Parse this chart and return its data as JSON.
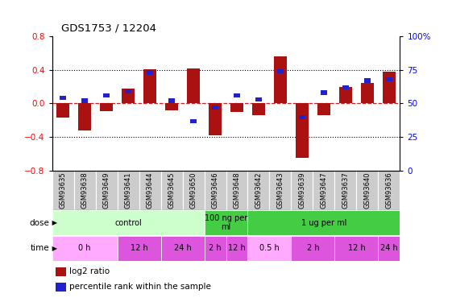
{
  "title": "GDS1753 / 12204",
  "samples": [
    "GSM93635",
    "GSM93638",
    "GSM93649",
    "GSM93641",
    "GSM93644",
    "GSM93645",
    "GSM93650",
    "GSM93646",
    "GSM93648",
    "GSM93642",
    "GSM93643",
    "GSM93639",
    "GSM93647",
    "GSM93637",
    "GSM93640",
    "GSM93636"
  ],
  "log2_ratio": [
    -0.17,
    -0.32,
    -0.09,
    0.18,
    0.41,
    -0.08,
    0.42,
    -0.38,
    -0.1,
    -0.14,
    0.56,
    -0.65,
    -0.14,
    0.2,
    0.24,
    0.38
  ],
  "percentile": [
    54,
    52,
    56,
    59,
    73,
    52,
    37,
    47,
    56,
    53,
    74,
    40,
    58,
    62,
    67,
    68
  ],
  "ylim": [
    -0.8,
    0.8
  ],
  "yticks_left": [
    -0.8,
    -0.4,
    0.0,
    0.4,
    0.8
  ],
  "right_yticks_pct": [
    0,
    25,
    50,
    75,
    100
  ],
  "bar_color": "#aa1111",
  "blue_color": "#2222cc",
  "dashed_color": "#cc2222",
  "dose_rows": [
    {
      "label": "control",
      "start": 0,
      "end": 7,
      "color": "#ccffcc"
    },
    {
      "label": "100 ng per\nml",
      "start": 7,
      "end": 9,
      "color": "#44cc44"
    },
    {
      "label": "1 ug per ml",
      "start": 9,
      "end": 16,
      "color": "#44cc44"
    }
  ],
  "time_rows": [
    {
      "label": "0 h",
      "start": 0,
      "end": 3,
      "color": "#ffaaff"
    },
    {
      "label": "12 h",
      "start": 3,
      "end": 5,
      "color": "#dd55dd"
    },
    {
      "label": "24 h",
      "start": 5,
      "end": 7,
      "color": "#dd55dd"
    },
    {
      "label": "2 h",
      "start": 7,
      "end": 8,
      "color": "#dd55dd"
    },
    {
      "label": "12 h",
      "start": 8,
      "end": 9,
      "color": "#dd55dd"
    },
    {
      "label": "0.5 h",
      "start": 9,
      "end": 11,
      "color": "#ffaaff"
    },
    {
      "label": "2 h",
      "start": 11,
      "end": 13,
      "color": "#dd55dd"
    },
    {
      "label": "12 h",
      "start": 13,
      "end": 15,
      "color": "#dd55dd"
    },
    {
      "label": "24 h",
      "start": 15,
      "end": 16,
      "color": "#dd55dd"
    }
  ],
  "legend_red": "log2 ratio",
  "legend_blue": "percentile rank within the sample",
  "dose_label": "dose",
  "time_label": "time",
  "sample_box_color": "#cccccc",
  "bg_color": "#ffffff"
}
